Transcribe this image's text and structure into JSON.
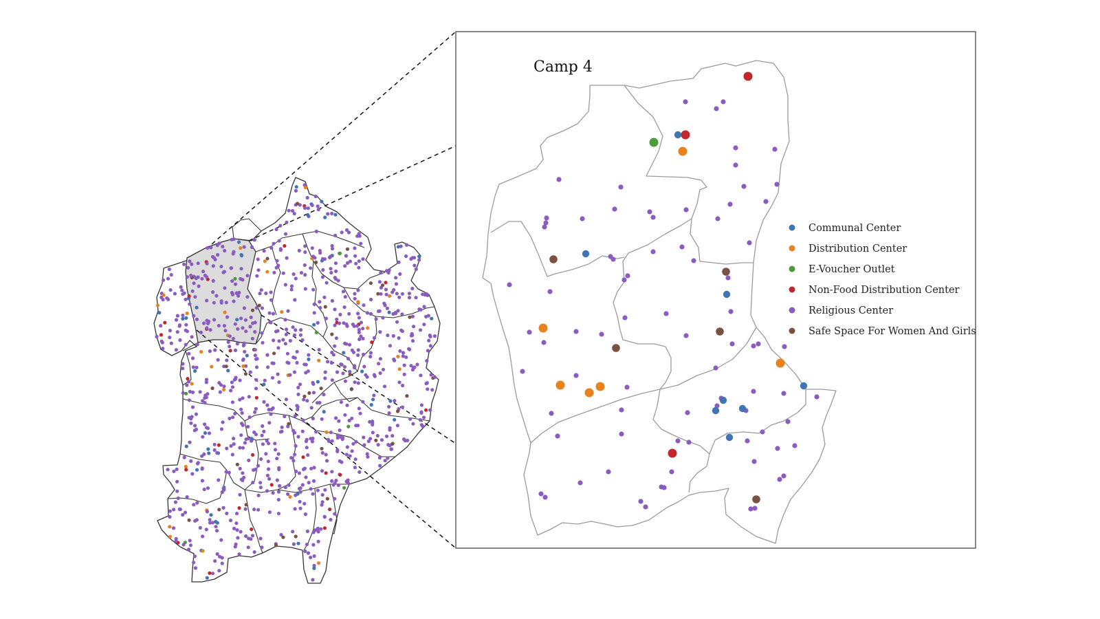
{
  "inset": {
    "title": "Camp 4"
  },
  "legend": {
    "items": [
      {
        "key": "communal",
        "label": "Communal Center",
        "color": "#3f74b5"
      },
      {
        "key": "distribution",
        "label": "Distribution Center",
        "color": "#e8821e"
      },
      {
        "key": "evoucher",
        "label": "E-Voucher Outlet",
        "color": "#4d9a3a"
      },
      {
        "key": "nonfood",
        "label": "Non-Food Distribution Center",
        "color": "#c0282c"
      },
      {
        "key": "religious",
        "label": "Religious Center",
        "color": "#8a5cc0"
      },
      {
        "key": "safespace",
        "label": "Safe Space For Women And Girls",
        "color": "#7a5142"
      }
    ]
  },
  "colors": {
    "highlight_fill": "#dcdcdc",
    "region_stroke": "#333333",
    "inset_region_stroke": "#9a9a9a",
    "frame_stroke": "#555555"
  }
}
